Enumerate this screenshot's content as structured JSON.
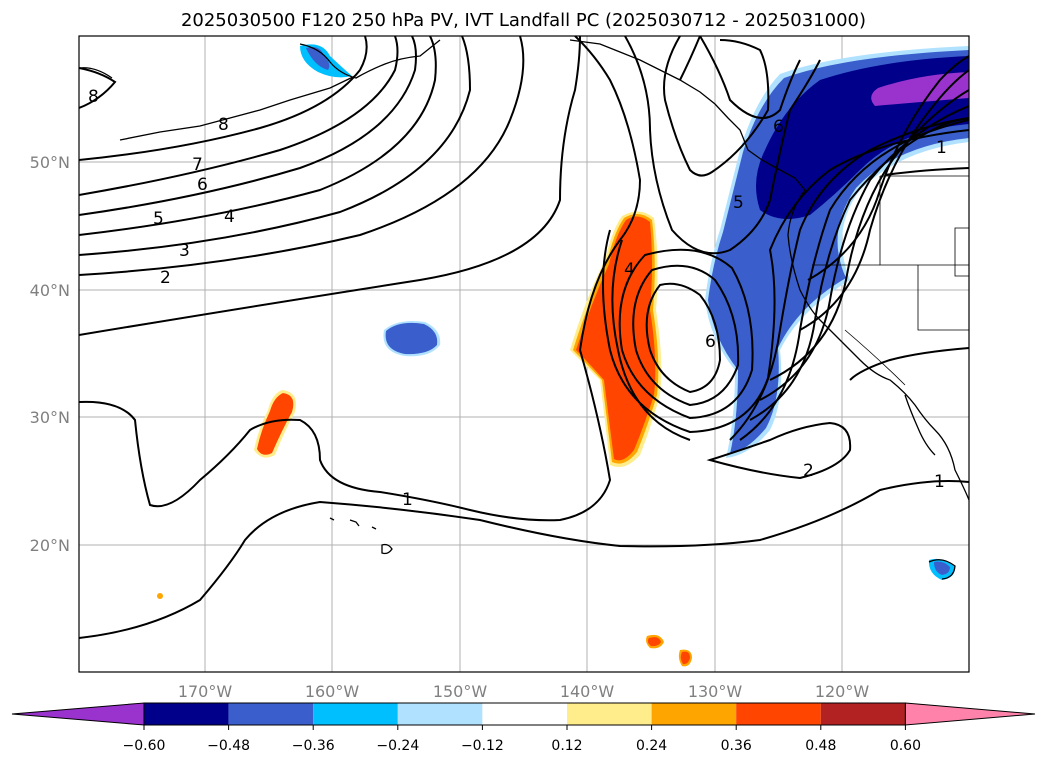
{
  "title": "2025030500 F120 250 hPa PV, IVT Landfall PC (2025030712 - 2025031000)",
  "latitude_labels": [
    "50°N",
    "40°N",
    "30°N",
    "20°N"
  ],
  "longitude_labels": [
    "170°W",
    "160°W",
    "150°W",
    "140°W",
    "130°W",
    "120°W"
  ],
  "contour_labels": [
    "8",
    "8",
    "7",
    "6",
    "5",
    "4",
    "3",
    "2",
    "1",
    "1",
    "1",
    "2",
    "4",
    "6",
    "6",
    "5"
  ],
  "colorbar": {
    "ticks": [
      "−0.60",
      "−0.48",
      "−0.36",
      "−0.24",
      "−0.12",
      "0.12",
      "0.24",
      "0.36",
      "0.48",
      "0.60"
    ],
    "colors": [
      "#9a32cd",
      "#00008b",
      "#3a5fcd",
      "#00bfff",
      "#b0e2ff",
      "#ffffff",
      "#ffec8b",
      "#ffa500",
      "#ff4500",
      "#b22222",
      "#ff82ab"
    ]
  },
  "shading_colors": {
    "negative_strong": "#00008b",
    "negative_mid": "#3a5fcd",
    "negative_light": "#00bfff",
    "negative_faint": "#b0e2ff",
    "negative_extreme": "#9a32cd",
    "positive_mid": "#ff4500",
    "positive_light": "#ffa500",
    "positive_faint": "#ffec8b"
  }
}
